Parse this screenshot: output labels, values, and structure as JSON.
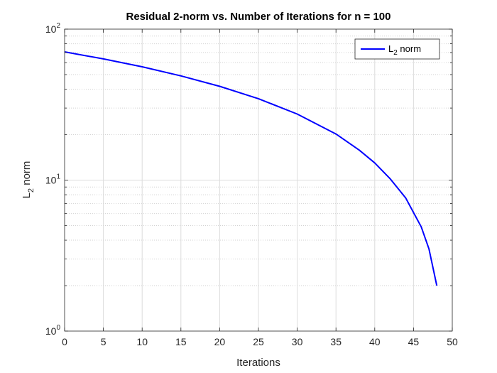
{
  "chart_data": {
    "type": "line",
    "title": "Residual 2-norm vs. Number of Iterations for n = 100",
    "xlabel": "Iterations",
    "ylabel": {
      "base": "L",
      "sub": "2",
      "rest": " norm"
    },
    "xlim": [
      0,
      50
    ],
    "ylim": [
      1,
      100
    ],
    "yscale": "log",
    "grid": true,
    "minor_grid": true,
    "legend_position": "top-right",
    "x_ticks": [
      "0",
      "5",
      "10",
      "15",
      "20",
      "25",
      "30",
      "35",
      "40",
      "45",
      "50"
    ],
    "y_ticks": [
      {
        "base": "10",
        "exp": "0"
      },
      {
        "base": "10",
        "exp": "1"
      },
      {
        "base": "10",
        "exp": "2"
      }
    ],
    "series": [
      {
        "name": {
          "base": "L",
          "sub": "2",
          "rest": " norm"
        },
        "color": "#0000ff",
        "x": [
          0,
          5,
          10,
          15,
          20,
          25,
          30,
          35,
          38,
          40,
          42,
          44,
          45,
          46,
          47,
          48
        ],
        "y": [
          70.7,
          63.5,
          56.3,
          49.0,
          41.8,
          34.6,
          27.4,
          20.2,
          15.8,
          13.0,
          10.2,
          7.6,
          6.1,
          4.9,
          3.5,
          2.0
        ]
      }
    ]
  }
}
